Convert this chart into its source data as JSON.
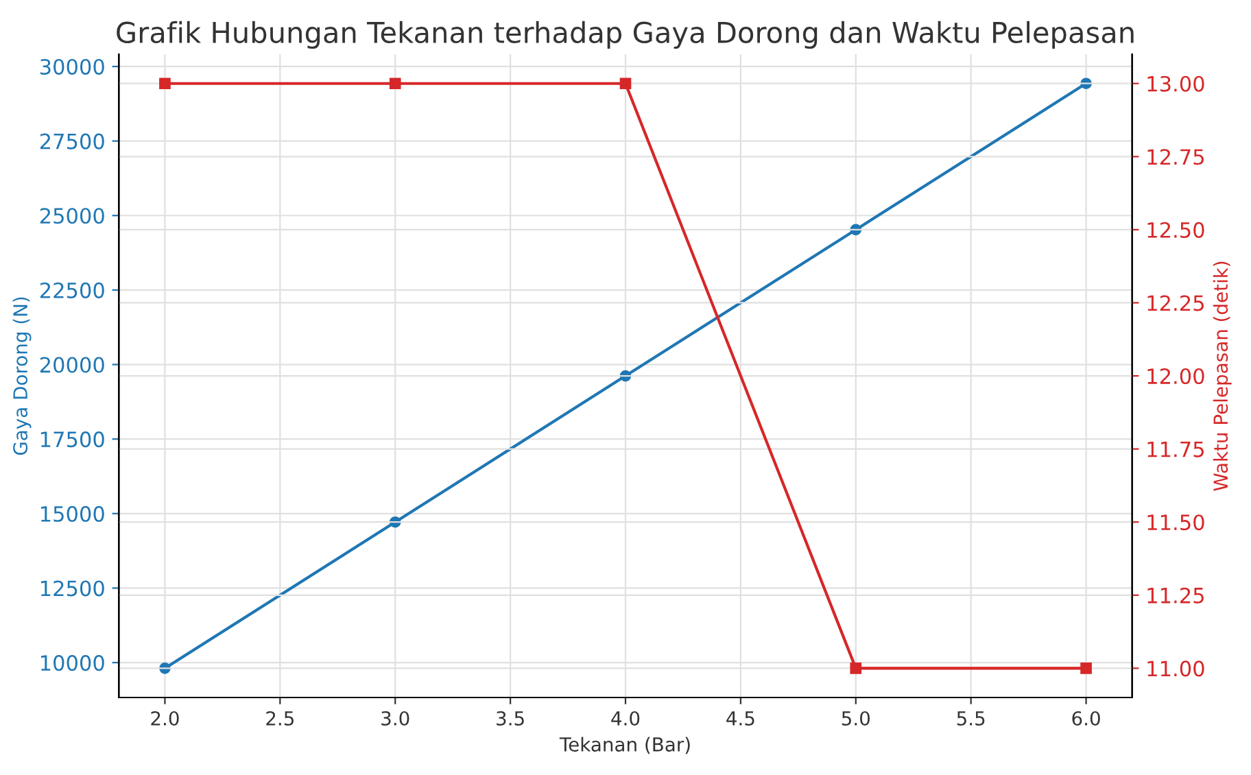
{
  "chart_data": {
    "type": "line",
    "title": "Grafik Hubungan Tekanan terhadap Gaya Dorong dan Waktu Pelepasan",
    "xlabel": "Tekanan (Bar)",
    "ylabel": "Gaya Dorong (N)",
    "y2label": "Waktu Pelepasan (detik)",
    "x": [
      2,
      3,
      4,
      5,
      6
    ],
    "series": [
      {
        "color": "#1f77b4",
        "values": [
          9810,
          14715,
          19620,
          24525,
          29430
        ],
        "marker": "circle"
      },
      {
        "color": "#d62728",
        "values": [
          13,
          13,
          13,
          11,
          11
        ],
        "axis": "y2",
        "marker": "square"
      }
    ],
    "xlim": [
      1.8,
      6.2
    ],
    "xticks": [
      {
        "value": 2,
        "label": "2.0"
      },
      {
        "value": 2.5,
        "label": "2.5"
      },
      {
        "value": 3,
        "label": "3.0"
      },
      {
        "value": 3.5,
        "label": "3.5"
      },
      {
        "value": 4,
        "label": "4.0"
      },
      {
        "value": 4.5,
        "label": "4.5"
      },
      {
        "value": 5,
        "label": "5.0"
      },
      {
        "value": 5.5,
        "label": "5.5"
      },
      {
        "value": 6,
        "label": "6.0"
      }
    ],
    "ylim": [
      8829,
      30411
    ],
    "yticks": [
      10000,
      12500,
      15000,
      17500,
      20000,
      22500,
      25000,
      27500,
      30000
    ],
    "y2lim": [
      10.9,
      13.1
    ],
    "y2ticks": [
      {
        "value": 11,
        "label": "11.00"
      },
      {
        "value": 11.25,
        "label": "11.25"
      },
      {
        "value": 11.5,
        "label": "11.50"
      },
      {
        "value": 11.75,
        "label": "11.75"
      },
      {
        "value": 12,
        "label": "12.00"
      },
      {
        "value": 12.25,
        "label": "12.25"
      },
      {
        "value": 12.5,
        "label": "12.50"
      },
      {
        "value": 12.75,
        "label": "12.75"
      },
      {
        "value": 13,
        "label": "13.00"
      }
    ],
    "grid": true
  }
}
